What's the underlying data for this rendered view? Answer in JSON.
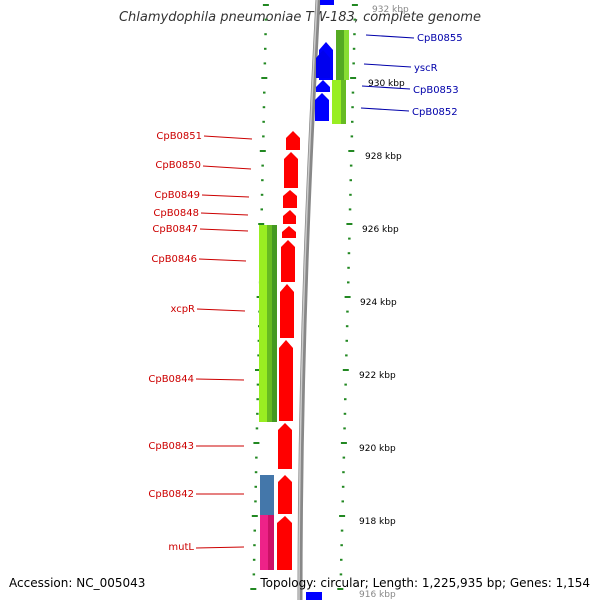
{
  "title": "Chlamydophila pneumoniae TW-183, complete genome",
  "footer": {
    "accession": "Accession: NC_005043",
    "summary": "Topology: circular; Length: 1,225,935 bp; Genes: 1,154"
  },
  "colors": {
    "forward_gene": "#ff0000",
    "reverse_gene": "#0000ff",
    "cog_green": "#66cc22",
    "cog_lime": "#99ee22",
    "cog_steel": "#4477aa",
    "cog_pink": "#ee2288",
    "tick": "#228822",
    "label_left": "#cc0000",
    "label_right": "#0000aa",
    "backbone": "#888888"
  },
  "scale": {
    "unit": "kbp",
    "labels": [
      {
        "text": "932 kbp",
        "kbp": 932
      },
      {
        "text": "930 kbp",
        "kbp": 930
      },
      {
        "text": "928 kbp",
        "kbp": 928
      },
      {
        "text": "926 kbp",
        "kbp": 926
      },
      {
        "text": "924 kbp",
        "kbp": 924
      },
      {
        "text": "922 kbp",
        "kbp": 922
      },
      {
        "text": "920 kbp",
        "kbp": 920
      },
      {
        "text": "918 kbp",
        "kbp": 918
      },
      {
        "text": "916 kbp",
        "kbp": 916
      }
    ]
  },
  "genes_left": [
    {
      "label": "CpB0851"
    },
    {
      "label": "CpB0850"
    },
    {
      "label": "CpB0849"
    },
    {
      "label": "CpB0848"
    },
    {
      "label": "CpB0847"
    },
    {
      "label": "CpB0846"
    },
    {
      "label": "xcpR"
    },
    {
      "label": "CpB0844"
    },
    {
      "label": "CpB0843"
    },
    {
      "label": "CpB0842"
    },
    {
      "label": "mutL"
    }
  ],
  "genes_right": [
    {
      "label": "CpB0855"
    },
    {
      "label": "yscR"
    },
    {
      "label": "CpB0853"
    },
    {
      "label": "CpB0852"
    }
  ]
}
